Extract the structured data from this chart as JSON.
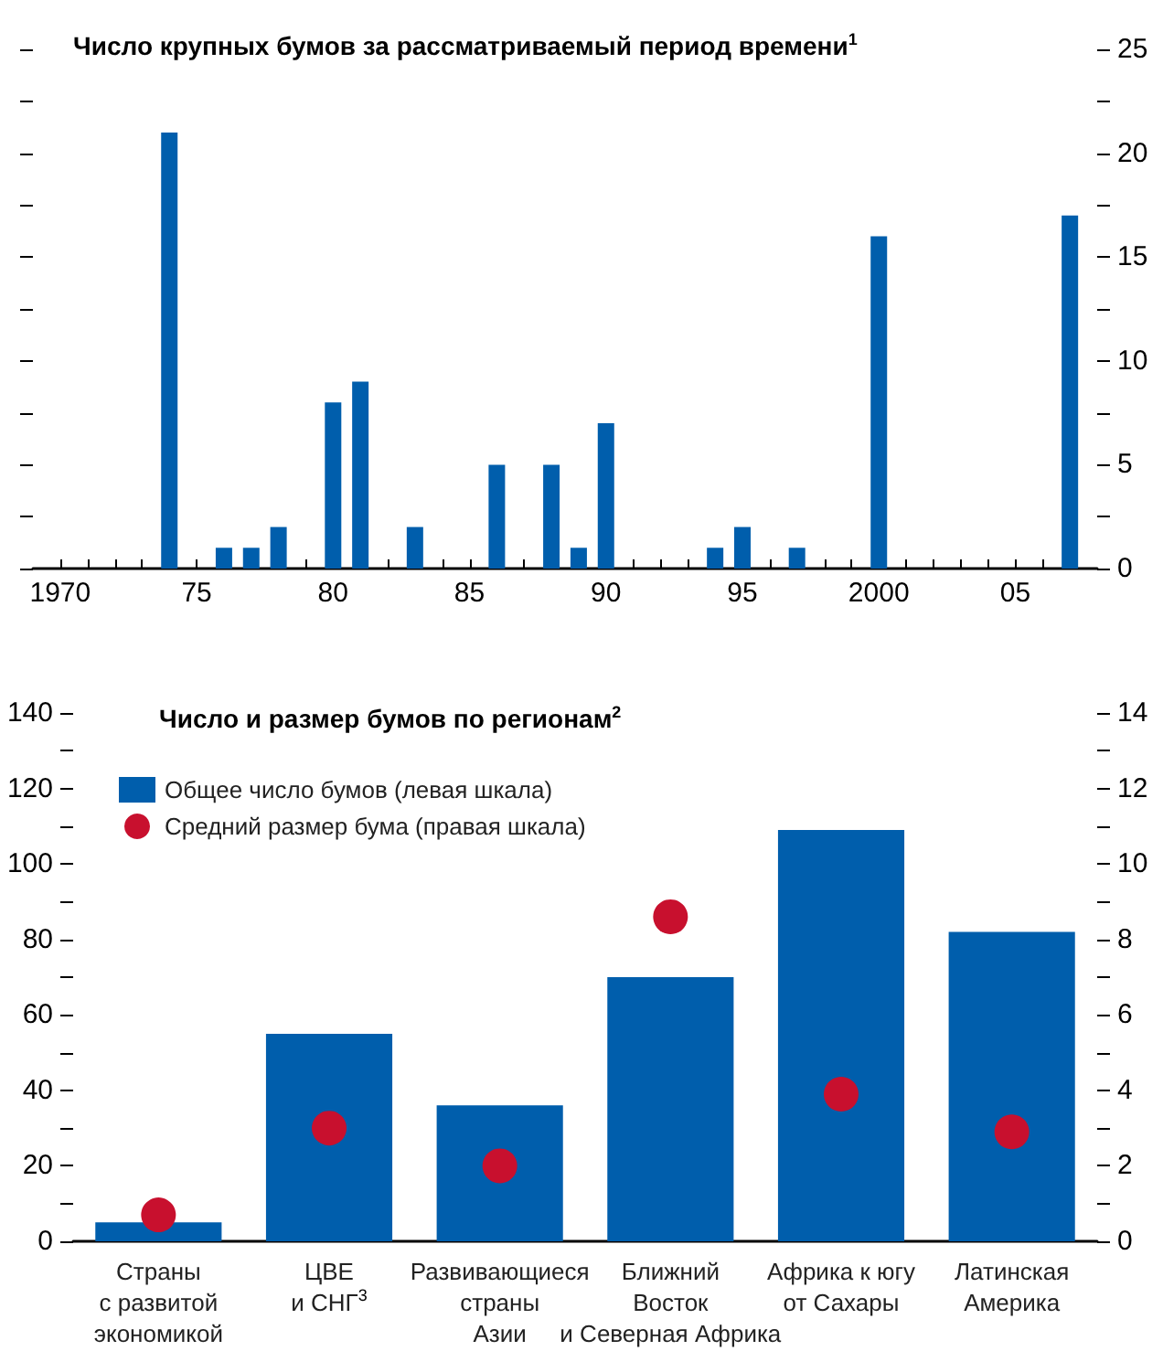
{
  "chart_data": [
    {
      "type": "bar",
      "title": "Число крупных бумов за рассматриваемый период времени$^{1}$",
      "x": [
        1974,
        1976,
        1977,
        1978,
        1980,
        1981,
        1983,
        1986,
        1988,
        1989,
        1990,
        1994,
        1995,
        1997,
        2000,
        2007
      ],
      "values": [
        21,
        1,
        1,
        2,
        8,
        9,
        2,
        5,
        5,
        1,
        7,
        1,
        2,
        1,
        16,
        17
      ],
      "color": "#005eac",
      "xlim": [
        1969,
        2008
      ],
      "xticks": [
        {
          "value": 1970,
          "label": "1970"
        },
        {
          "value": 1971,
          "label": null
        },
        {
          "value": 1972,
          "label": null
        },
        {
          "value": 1973,
          "label": null
        },
        {
          "value": 1974,
          "label": null
        },
        {
          "value": 1975,
          "label": "75"
        },
        {
          "value": 1976,
          "label": null
        },
        {
          "value": 1977,
          "label": null
        },
        {
          "value": 1978,
          "label": null
        },
        {
          "value": 1979,
          "label": null
        },
        {
          "value": 1980,
          "label": "80"
        },
        {
          "value": 1981,
          "label": null
        },
        {
          "value": 1982,
          "label": null
        },
        {
          "value": 1983,
          "label": null
        },
        {
          "value": 1984,
          "label": null
        },
        {
          "value": 1985,
          "label": "85"
        },
        {
          "value": 1986,
          "label": null
        },
        {
          "value": 1987,
          "label": null
        },
        {
          "value": 1988,
          "label": null
        },
        {
          "value": 1989,
          "label": null
        },
        {
          "value": 1990,
          "label": "90"
        },
        {
          "value": 1991,
          "label": null
        },
        {
          "value": 1992,
          "label": null
        },
        {
          "value": 1993,
          "label": null
        },
        {
          "value": 1994,
          "label": null
        },
        {
          "value": 1995,
          "label": "95"
        },
        {
          "value": 1996,
          "label": null
        },
        {
          "value": 1997,
          "label": null
        },
        {
          "value": 1998,
          "label": null
        },
        {
          "value": 1999,
          "label": null
        },
        {
          "value": 2000,
          "label": "2000"
        },
        {
          "value": 2001,
          "label": null
        },
        {
          "value": 2002,
          "label": null
        },
        {
          "value": 2003,
          "label": null
        },
        {
          "value": 2004,
          "label": null
        },
        {
          "value": 2005,
          "label": "05"
        },
        {
          "value": 2006,
          "label": null
        }
      ],
      "ylim": [
        0,
        25
      ],
      "yticks": [
        0,
        {
          "value": 2.5,
          "label": null
        },
        5,
        {
          "value": 7.5,
          "label": null
        },
        10,
        {
          "value": 12.5,
          "label": null
        },
        15,
        {
          "value": 17.5,
          "label": null
        },
        20,
        {
          "value": 22.5,
          "label": null
        },
        25
      ]
    },
    {
      "type": "bar",
      "title": "Число и размер бумов по регионам$^{2}$",
      "categories": [
        "Страны\nс развитой\nэкономикой",
        "ЦВЕ\nи СНГ$^{3}$",
        "Развивающиеся\nстраны\nАзии",
        "Ближний\nВосток\nи Северная Африка",
        "Африка к югу\nот Сахары",
        "Латинская\nАмерика"
      ],
      "series": [
        {
          "name": "Общее число бумов (левая шкала)",
          "type": "bar",
          "color": "#005eac",
          "values": [
            5,
            55,
            36,
            70,
            109,
            82
          ]
        },
        {
          "name": "Средний размер бума (правая шкала)",
          "type": "scatter",
          "axis": "y2",
          "color": "#c8102e",
          "values": [
            0.7,
            3.0,
            2.0,
            8.6,
            3.9,
            2.9
          ]
        }
      ],
      "ylim": [
        0,
        140
      ],
      "yticks": [
        0,
        {
          "value": 10,
          "label": null
        },
        20,
        {
          "value": 30,
          "label": null
        },
        40,
        {
          "value": 50,
          "label": null
        },
        60,
        {
          "value": 70,
          "label": null
        },
        80,
        {
          "value": 90,
          "label": null
        },
        100,
        {
          "value": 110,
          "label": null
        },
        120,
        {
          "value": 130,
          "label": null
        },
        140
      ],
      "y2lim": [
        0,
        14
      ],
      "y2ticks": [
        0,
        {
          "value": 1,
          "label": null
        },
        2,
        {
          "value": 3,
          "label": null
        },
        4,
        {
          "value": 5,
          "label": null
        },
        6,
        {
          "value": 7,
          "label": null
        },
        8,
        {
          "value": 9,
          "label": null
        },
        10,
        {
          "value": 11,
          "label": null
        },
        12,
        {
          "value": 13,
          "label": null
        },
        14
      ],
      "legend": "top left",
      "marker": "circle"
    }
  ]
}
